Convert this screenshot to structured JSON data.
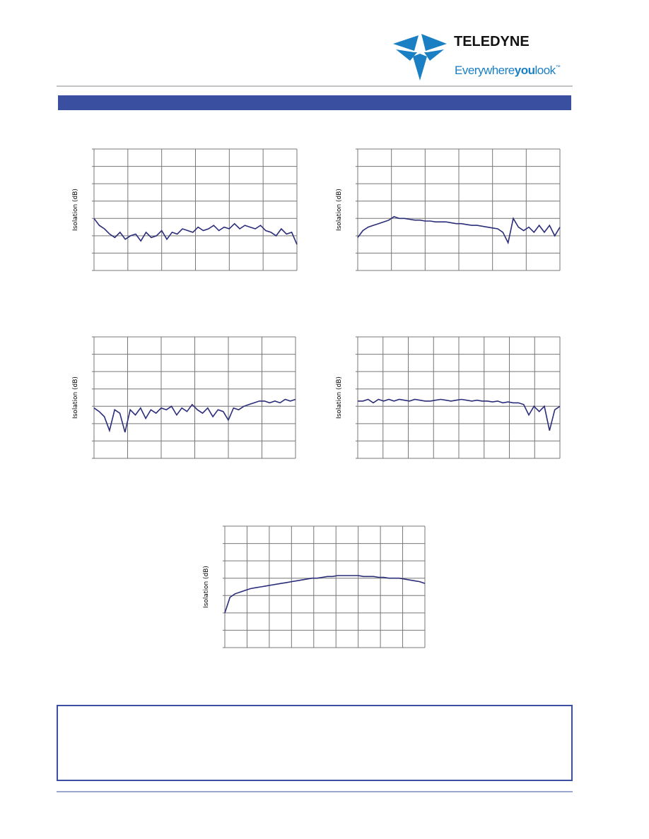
{
  "header": {
    "brand": "TELEDYNE",
    "tagline": [
      "Everywhere",
      "you",
      "look",
      "™"
    ]
  },
  "chart_data": [
    {
      "type": "line",
      "y_label": "Isolation (dB)",
      "ylim": [
        0,
        7
      ],
      "color": "#2b2d7a",
      "values": [
        3.0,
        2.6,
        2.4,
        2.1,
        1.9,
        2.2,
        1.8,
        2.0,
        2.1,
        1.7,
        2.2,
        1.9,
        2.0,
        2.3,
        1.8,
        2.2,
        2.1,
        2.4,
        2.3,
        2.2,
        2.5,
        2.3,
        2.4,
        2.6,
        2.3,
        2.5,
        2.4,
        2.7,
        2.4,
        2.6,
        2.5,
        2.4,
        2.6,
        2.3,
        2.2,
        2.0,
        2.4,
        2.1,
        2.2,
        1.5
      ]
    },
    {
      "type": "line",
      "y_label": "Isolation (dB)",
      "ylim": [
        0,
        7
      ],
      "color": "#2b2d7a",
      "values": [
        1.9,
        2.3,
        2.5,
        2.6,
        2.7,
        2.8,
        2.9,
        3.1,
        3.0,
        3.0,
        2.95,
        2.9,
        2.9,
        2.85,
        2.85,
        2.8,
        2.8,
        2.8,
        2.75,
        2.7,
        2.7,
        2.65,
        2.6,
        2.6,
        2.55,
        2.5,
        2.45,
        2.4,
        2.2,
        1.6,
        3.0,
        2.5,
        2.3,
        2.5,
        2.2,
        2.6,
        2.2,
        2.6,
        2.0,
        2.5
      ]
    },
    {
      "type": "line",
      "y_label": "Isolation (dB)",
      "ylim": [
        0,
        7
      ],
      "color": "#2b2d7a",
      "values": [
        2.9,
        2.7,
        2.4,
        1.6,
        2.8,
        2.6,
        1.5,
        2.8,
        2.5,
        2.9,
        2.3,
        2.8,
        2.6,
        2.9,
        2.8,
        3.0,
        2.5,
        2.9,
        2.7,
        3.1,
        2.8,
        2.6,
        2.9,
        2.4,
        2.8,
        2.7,
        2.2,
        2.9,
        2.8,
        3.0,
        3.1,
        3.2,
        3.3,
        3.3,
        3.2,
        3.3,
        3.2,
        3.4,
        3.3,
        3.4
      ]
    },
    {
      "type": "line",
      "y_label": "Isolation (dB)",
      "ylim": [
        0,
        7
      ],
      "color": "#2b2d7a",
      "values": [
        3.3,
        3.3,
        3.4,
        3.2,
        3.4,
        3.3,
        3.4,
        3.3,
        3.4,
        3.35,
        3.3,
        3.4,
        3.35,
        3.3,
        3.3,
        3.35,
        3.4,
        3.35,
        3.3,
        3.35,
        3.4,
        3.35,
        3.3,
        3.35,
        3.3,
        3.3,
        3.25,
        3.3,
        3.2,
        3.25,
        3.2,
        3.2,
        3.1,
        2.5,
        3.0,
        2.7,
        3.0,
        1.6,
        2.8,
        3.0
      ]
    },
    {
      "type": "line",
      "y_label": "Isolation (dB)",
      "ylim": [
        0,
        7
      ],
      "color": "#2b2d7a",
      "values": [
        2.0,
        2.9,
        3.1,
        3.2,
        3.3,
        3.4,
        3.45,
        3.5,
        3.55,
        3.6,
        3.65,
        3.7,
        3.75,
        3.8,
        3.85,
        3.9,
        3.95,
        4.0,
        4.0,
        4.05,
        4.1,
        4.1,
        4.15,
        4.15,
        4.15,
        4.15,
        4.15,
        4.1,
        4.1,
        4.1,
        4.05,
        4.05,
        4.0,
        4.0,
        4.0,
        3.95,
        3.9,
        3.85,
        3.8,
        3.7
      ]
    }
  ]
}
